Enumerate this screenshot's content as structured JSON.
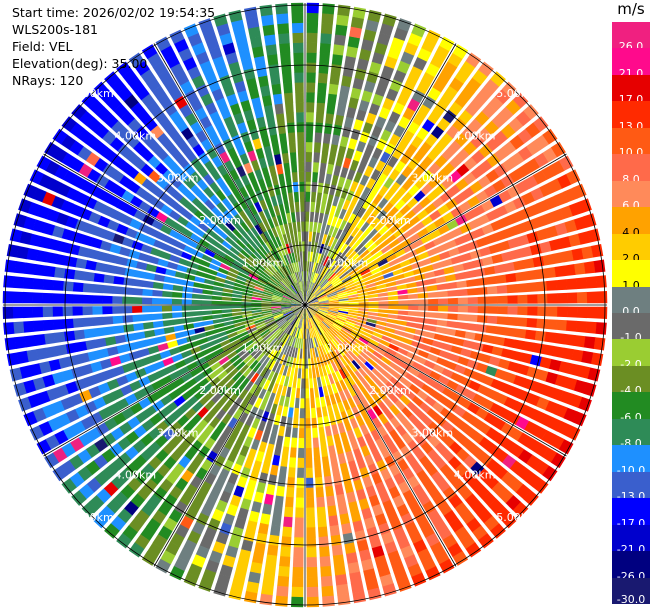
{
  "info": {
    "start_time": "Start time: 2026/02/02 19:54:35",
    "instrument": "WLS200s-181",
    "field": "Field: VEL",
    "elevation": "Elevation(deg): 35.00",
    "nrays": "NRays: 120"
  },
  "range_rings": [
    "1.00km",
    "2.00km",
    "3.00km",
    "4.00km",
    "5.00km"
  ],
  "colorbar": {
    "unit": "m/s",
    "bins": [
      {
        "label": "26.0",
        "color": "#f02080"
      },
      {
        "label": "21.0",
        "color": "#ff0a8c"
      },
      {
        "label": "17.0",
        "color": "#e60000"
      },
      {
        "label": "13.0",
        "color": "#ff2a00"
      },
      {
        "label": "10.0",
        "color": "#ff5a14"
      },
      {
        "label": "8.0",
        "color": "#ff6a4a"
      },
      {
        "label": "6.0",
        "color": "#ff8a5a"
      },
      {
        "label": "4.0",
        "color": "#ffa200"
      },
      {
        "label": "2.0",
        "color": "#ffcc00"
      },
      {
        "label": "1.0",
        "color": "#ffff00"
      },
      {
        "label": "0.0",
        "color": "#6e7f80"
      },
      {
        "label": "-1.0",
        "color": "#6a6a6a"
      },
      {
        "label": "-2.0",
        "color": "#9acd32"
      },
      {
        "label": "-4.0",
        "color": "#6b8e23"
      },
      {
        "label": "-6.0",
        "color": "#228b22"
      },
      {
        "label": "-8.0",
        "color": "#2e8b57"
      },
      {
        "label": "-10.0",
        "color": "#1e90ff"
      },
      {
        "label": "-13.0",
        "color": "#3a5fcd"
      },
      {
        "label": "-17.0",
        "color": "#0000ff"
      },
      {
        "label": "-21.0",
        "color": "#0000cd"
      },
      {
        "label": "-26.0",
        "color": "#000080"
      },
      {
        "label": "-30.0",
        "color": "#191970"
      }
    ]
  }
}
